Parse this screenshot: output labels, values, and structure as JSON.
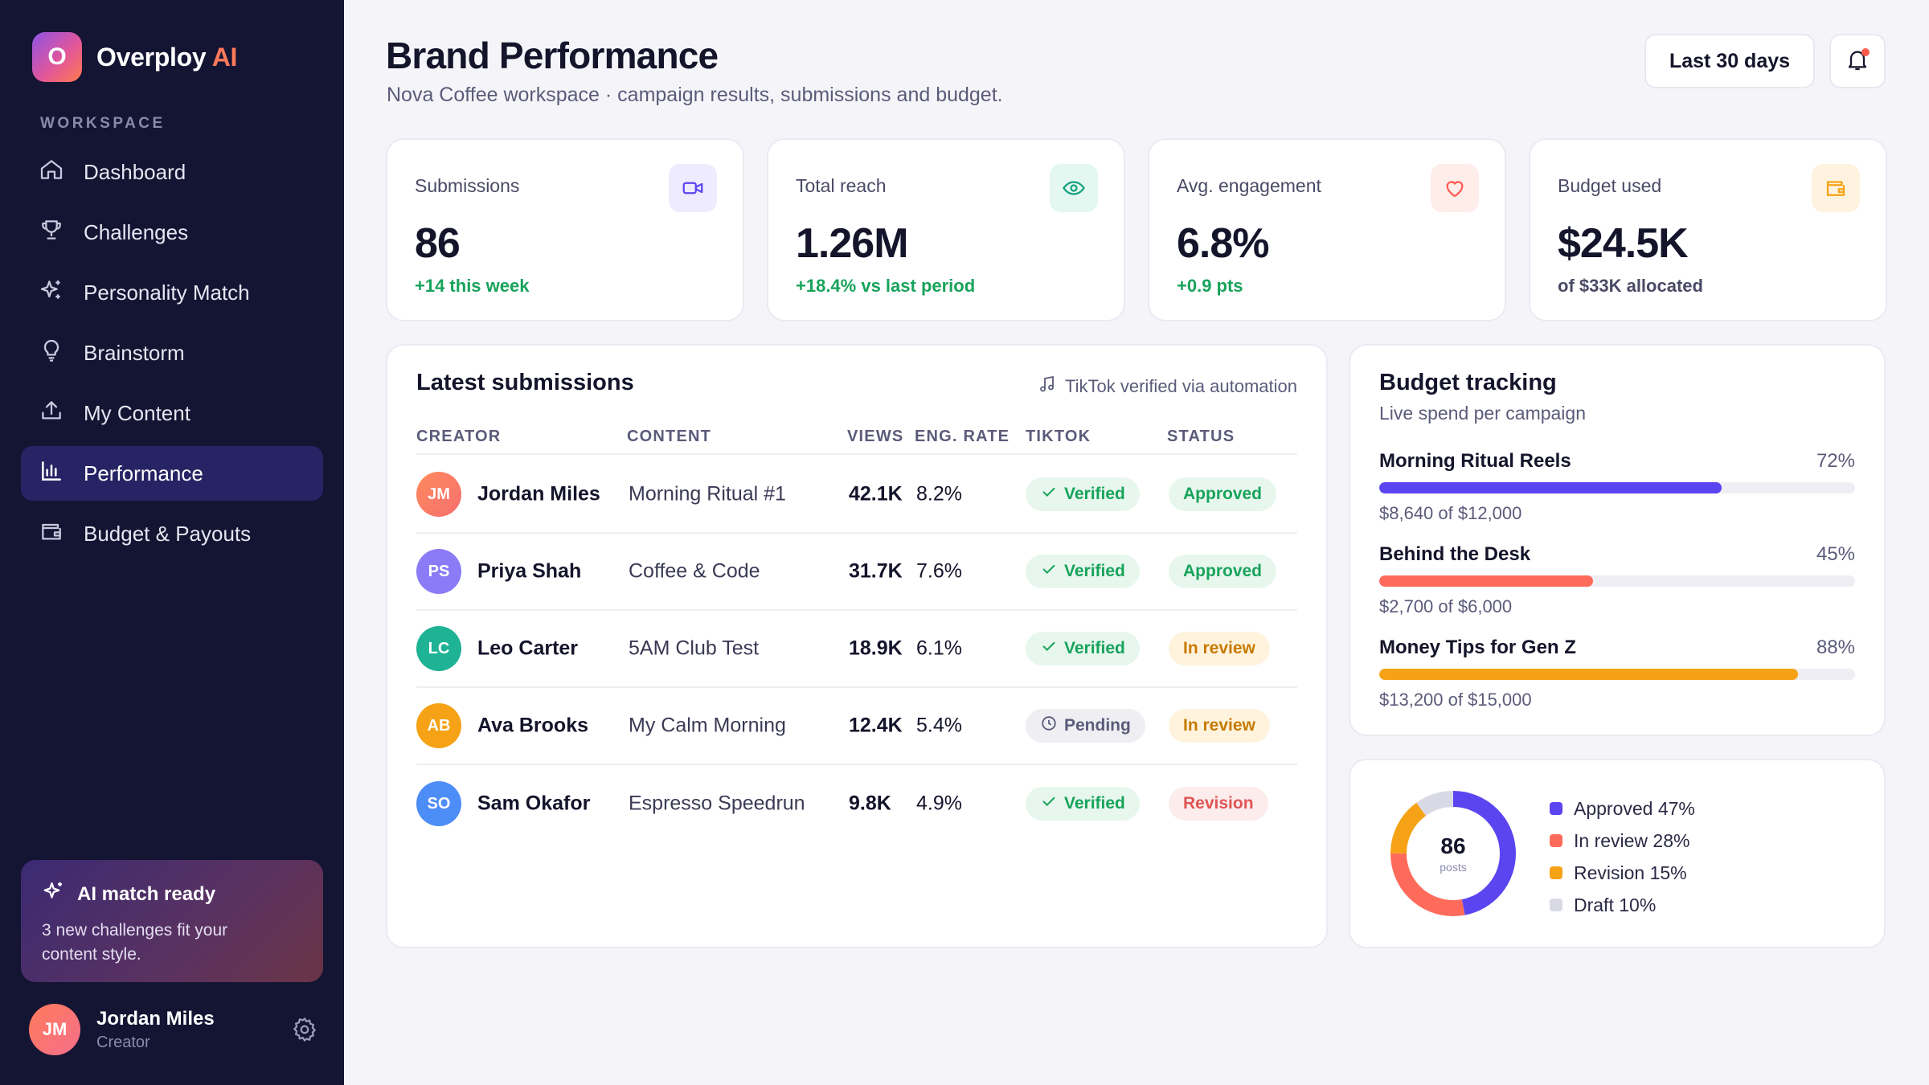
{
  "brand": {
    "logo_letter": "O",
    "name": "Overploy",
    "accent": "AI"
  },
  "sidebar": {
    "section_label": "WORKSPACE",
    "items": [
      {
        "label": "Dashboard",
        "icon": "home-icon"
      },
      {
        "label": "Challenges",
        "icon": "trophy-icon"
      },
      {
        "label": "Personality Match",
        "icon": "sparkles-icon"
      },
      {
        "label": "Brainstorm",
        "icon": "lightbulb-icon"
      },
      {
        "label": "My Content",
        "icon": "upload-icon"
      },
      {
        "label": "Performance",
        "icon": "bar-chart-icon",
        "active": true
      },
      {
        "label": "Budget & Payouts",
        "icon": "wallet-icon"
      }
    ],
    "promo": {
      "title": "AI match ready",
      "text": "3 new challenges fit your content style."
    },
    "user": {
      "initials": "JM",
      "name": "Jordan Miles",
      "role": "Creator"
    }
  },
  "header": {
    "title": "Brand Performance",
    "subtitle": "Nova Coffee workspace · campaign results, submissions and budget.",
    "range": "Last 30 days"
  },
  "stats": [
    {
      "label": "Submissions",
      "value": "86",
      "delta": "+14 this week",
      "icon": "video-icon"
    },
    {
      "label": "Total reach",
      "value": "1.26M",
      "delta": "+18.4% vs last period",
      "icon": "eye-icon"
    },
    {
      "label": "Avg. engagement",
      "value": "6.8%",
      "delta": "+0.9 pts",
      "icon": "heart-icon"
    },
    {
      "label": "Budget used",
      "value": "$24.5K",
      "delta": "of $33K allocated",
      "icon": "wallet-icon"
    }
  ],
  "submissions": {
    "title": "Latest submissions",
    "note": "TikTok verified via automation",
    "columns": [
      "CREATOR",
      "CONTENT",
      "VIEWS",
      "ENG. RATE",
      "TIKTOK",
      "STATUS"
    ],
    "rows": [
      {
        "initials": "JM",
        "creator": "Jordan Miles",
        "content": "Morning Ritual #1",
        "views": "42.1K",
        "eng": "8.2%",
        "tiktok": "Verified",
        "status": "Approved"
      },
      {
        "initials": "PS",
        "creator": "Priya Shah",
        "content": "Coffee & Code",
        "views": "31.7K",
        "eng": "7.6%",
        "tiktok": "Verified",
        "status": "Approved"
      },
      {
        "initials": "LC",
        "creator": "Leo Carter",
        "content": "5AM Club Test",
        "views": "18.9K",
        "eng": "6.1%",
        "tiktok": "Verified",
        "status": "In review"
      },
      {
        "initials": "AB",
        "creator": "Ava Brooks",
        "content": "My Calm Morning",
        "views": "12.4K",
        "eng": "5.4%",
        "tiktok": "Pending",
        "status": "In review"
      },
      {
        "initials": "SO",
        "creator": "Sam Okafor",
        "content": "Espresso Speedrun",
        "views": "9.8K",
        "eng": "4.9%",
        "tiktok": "Verified",
        "status": "Revision"
      }
    ]
  },
  "budget": {
    "title": "Budget tracking",
    "subtitle": "Live spend per campaign",
    "items": [
      {
        "name": "Morning Ritual Reels",
        "pct": "72%",
        "fill": 0.72,
        "amount": "$8,640 of $12,000",
        "color": "#5B45F0"
      },
      {
        "name": "Behind the Desk",
        "pct": "45%",
        "fill": 0.45,
        "amount": "$2,700 of $6,000",
        "color": "#FF6B5B"
      },
      {
        "name": "Money Tips for Gen Z",
        "pct": "88%",
        "fill": 0.88,
        "amount": "$13,200 of $15,000",
        "color": "#F5A216"
      }
    ]
  },
  "status_breakdown": {
    "total": "86",
    "total_label": "posts",
    "segments": [
      {
        "label": "Approved 47%",
        "value": 47,
        "color": "#5B45F0"
      },
      {
        "label": "In review 28%",
        "value": 28,
        "color": "#FF6B5B"
      },
      {
        "label": "Revision 15%",
        "value": 15,
        "color": "#F5A216"
      },
      {
        "label": "Draft 10%",
        "value": 10,
        "color": "#D9D9E6"
      }
    ]
  },
  "colors": {
    "sidebar_bg": "#141433",
    "accent": "#5B45F0",
    "positive": "#18A35B",
    "coral": "#FF6B5B",
    "amber": "#F5A216"
  }
}
